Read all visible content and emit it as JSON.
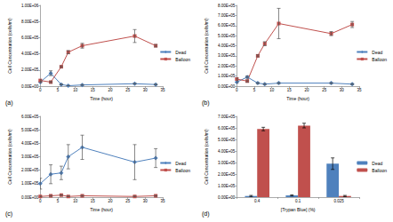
{
  "chart_data": [
    {
      "type": "line",
      "annotation": "(a)",
      "x_label": "Time (hour)",
      "y_label": "Cell Concentration (cells/ml)",
      "x": [
        0,
        3,
        6,
        8,
        12,
        27,
        33
      ],
      "series": [
        {
          "name": "Dead",
          "color": "#4f81bd",
          "marker": "diamond",
          "values": [
            50000,
            160000,
            20000,
            5000,
            15000,
            30000,
            20000
          ],
          "errors": [
            10000,
            30000,
            5000,
            3000,
            5000,
            5000,
            5000
          ]
        },
        {
          "name": "Balloon",
          "color": "#c0504d",
          "marker": "square",
          "values": [
            70000,
            50000,
            240000,
            420000,
            500000,
            620000,
            500000
          ],
          "errors": [
            10000,
            10000,
            10000,
            20000,
            30000,
            80000,
            15000
          ]
        }
      ],
      "xlim": [
        0,
        35
      ],
      "xticks": [
        0,
        5,
        10,
        15,
        20,
        25,
        30,
        35
      ],
      "ylim": [
        0,
        1000000
      ],
      "yticks": [
        {
          "value": 0,
          "label": "0.00E+00"
        },
        {
          "value": 200000,
          "label": "2.00E+05"
        },
        {
          "value": 400000,
          "label": "4.00E+05"
        },
        {
          "value": 600000,
          "label": "6.00E+05"
        },
        {
          "value": 800000,
          "label": "8.00E+05"
        },
        {
          "value": 1000000,
          "label": "1.00E+06"
        }
      ],
      "grid": false,
      "legend": "right"
    },
    {
      "type": "line",
      "annotation": "(b)",
      "x_label": "Time (hour)",
      "y_label": "Cell Concentration (cells/ml)",
      "x": [
        0,
        3,
        6,
        8,
        12,
        27,
        33
      ],
      "series": [
        {
          "name": "Dead",
          "color": "#4f81bd",
          "marker": "diamond",
          "values": [
            40000,
            90000,
            30000,
            20000,
            30000,
            30000,
            20000
          ],
          "errors": [
            10000,
            10000,
            5000,
            5000,
            5000,
            5000,
            5000
          ]
        },
        {
          "name": "Balloon",
          "color": "#c0504d",
          "marker": "square",
          "values": [
            70000,
            50000,
            300000,
            420000,
            620000,
            520000,
            610000
          ],
          "errors": [
            10000,
            10000,
            10000,
            20000,
            150000,
            20000,
            30000
          ]
        }
      ],
      "xlim": [
        0,
        35
      ],
      "xticks": [
        0,
        5,
        10,
        15,
        20,
        25,
        30,
        35
      ],
      "ylim": [
        0,
        800000
      ],
      "yticks": [
        {
          "value": 0,
          "label": "0.00E+00"
        },
        {
          "value": 100000,
          "label": "1.00E+05"
        },
        {
          "value": 200000,
          "label": "2.00E+05"
        },
        {
          "value": 300000,
          "label": "3.00E+05"
        },
        {
          "value": 400000,
          "label": "4.00E+05"
        },
        {
          "value": 500000,
          "label": "5.00E+05"
        },
        {
          "value": 600000,
          "label": "6.00E+05"
        },
        {
          "value": 700000,
          "label": "7.00E+05"
        },
        {
          "value": 800000,
          "label": "8.00E+05"
        }
      ],
      "grid": false,
      "legend": "right"
    },
    {
      "type": "line",
      "annotation": "(c)",
      "x_label": "Time (hour)",
      "y_label": "Cell Concentration (cells/ml)",
      "x": [
        0,
        3,
        6,
        8,
        12,
        27,
        33
      ],
      "series": [
        {
          "name": "Dead",
          "color": "#4f81bd",
          "marker": "diamond",
          "values": [
            100000,
            170000,
            180000,
            300000,
            370000,
            260000,
            290000
          ],
          "errors": [
            40000,
            70000,
            50000,
            90000,
            90000,
            130000,
            70000
          ]
        },
        {
          "name": "Balloon",
          "color": "#c0504d",
          "marker": "square",
          "values": [
            5000,
            10000,
            15000,
            5000,
            10000,
            5000,
            10000
          ],
          "errors": [
            3000,
            3000,
            3000,
            3000,
            3000,
            3000,
            3000
          ]
        }
      ],
      "xlim": [
        0,
        35
      ],
      "xticks": [
        0,
        5,
        10,
        15,
        20,
        25,
        30,
        35
      ],
      "ylim": [
        0,
        600000
      ],
      "yticks": [
        {
          "value": 0,
          "label": "0.00E+00"
        },
        {
          "value": 100000,
          "label": "1.00E+05"
        },
        {
          "value": 200000,
          "label": "2.00E+05"
        },
        {
          "value": 300000,
          "label": "3.00E+05"
        },
        {
          "value": 400000,
          "label": "4.00E+05"
        },
        {
          "value": 500000,
          "label": "5.00E+05"
        },
        {
          "value": 600000,
          "label": "6.00E+05"
        }
      ],
      "grid": false,
      "legend": "right"
    },
    {
      "type": "bar",
      "annotation": "(d)",
      "x_label": "[Trypan Blue] (%)",
      "y_label": "Cell Concentration (cells/ml)",
      "categories": [
        "0.4",
        "0.1",
        "0.025"
      ],
      "series": [
        {
          "name": "Dead",
          "color": "#4f81bd",
          "values": [
            10000,
            15000,
            290000
          ],
          "errors": [
            5000,
            5000,
            50000
          ]
        },
        {
          "name": "Balloon",
          "color": "#c0504d",
          "values": [
            590000,
            620000,
            10000
          ],
          "errors": [
            15000,
            20000,
            5000
          ]
        }
      ],
      "ylim": [
        0,
        700000
      ],
      "yticks": [
        {
          "value": 0,
          "label": "0.00E+00"
        },
        {
          "value": 100000,
          "label": "1.00E+05"
        },
        {
          "value": 200000,
          "label": "2.00E+05"
        },
        {
          "value": 300000,
          "label": "3.00E+05"
        },
        {
          "value": 400000,
          "label": "4.00E+05"
        },
        {
          "value": 500000,
          "label": "5.00E+05"
        },
        {
          "value": 600000,
          "label": "6.00E+05"
        },
        {
          "value": 700000,
          "label": "7.00E+05"
        }
      ],
      "grid": false,
      "legend": "right"
    }
  ]
}
